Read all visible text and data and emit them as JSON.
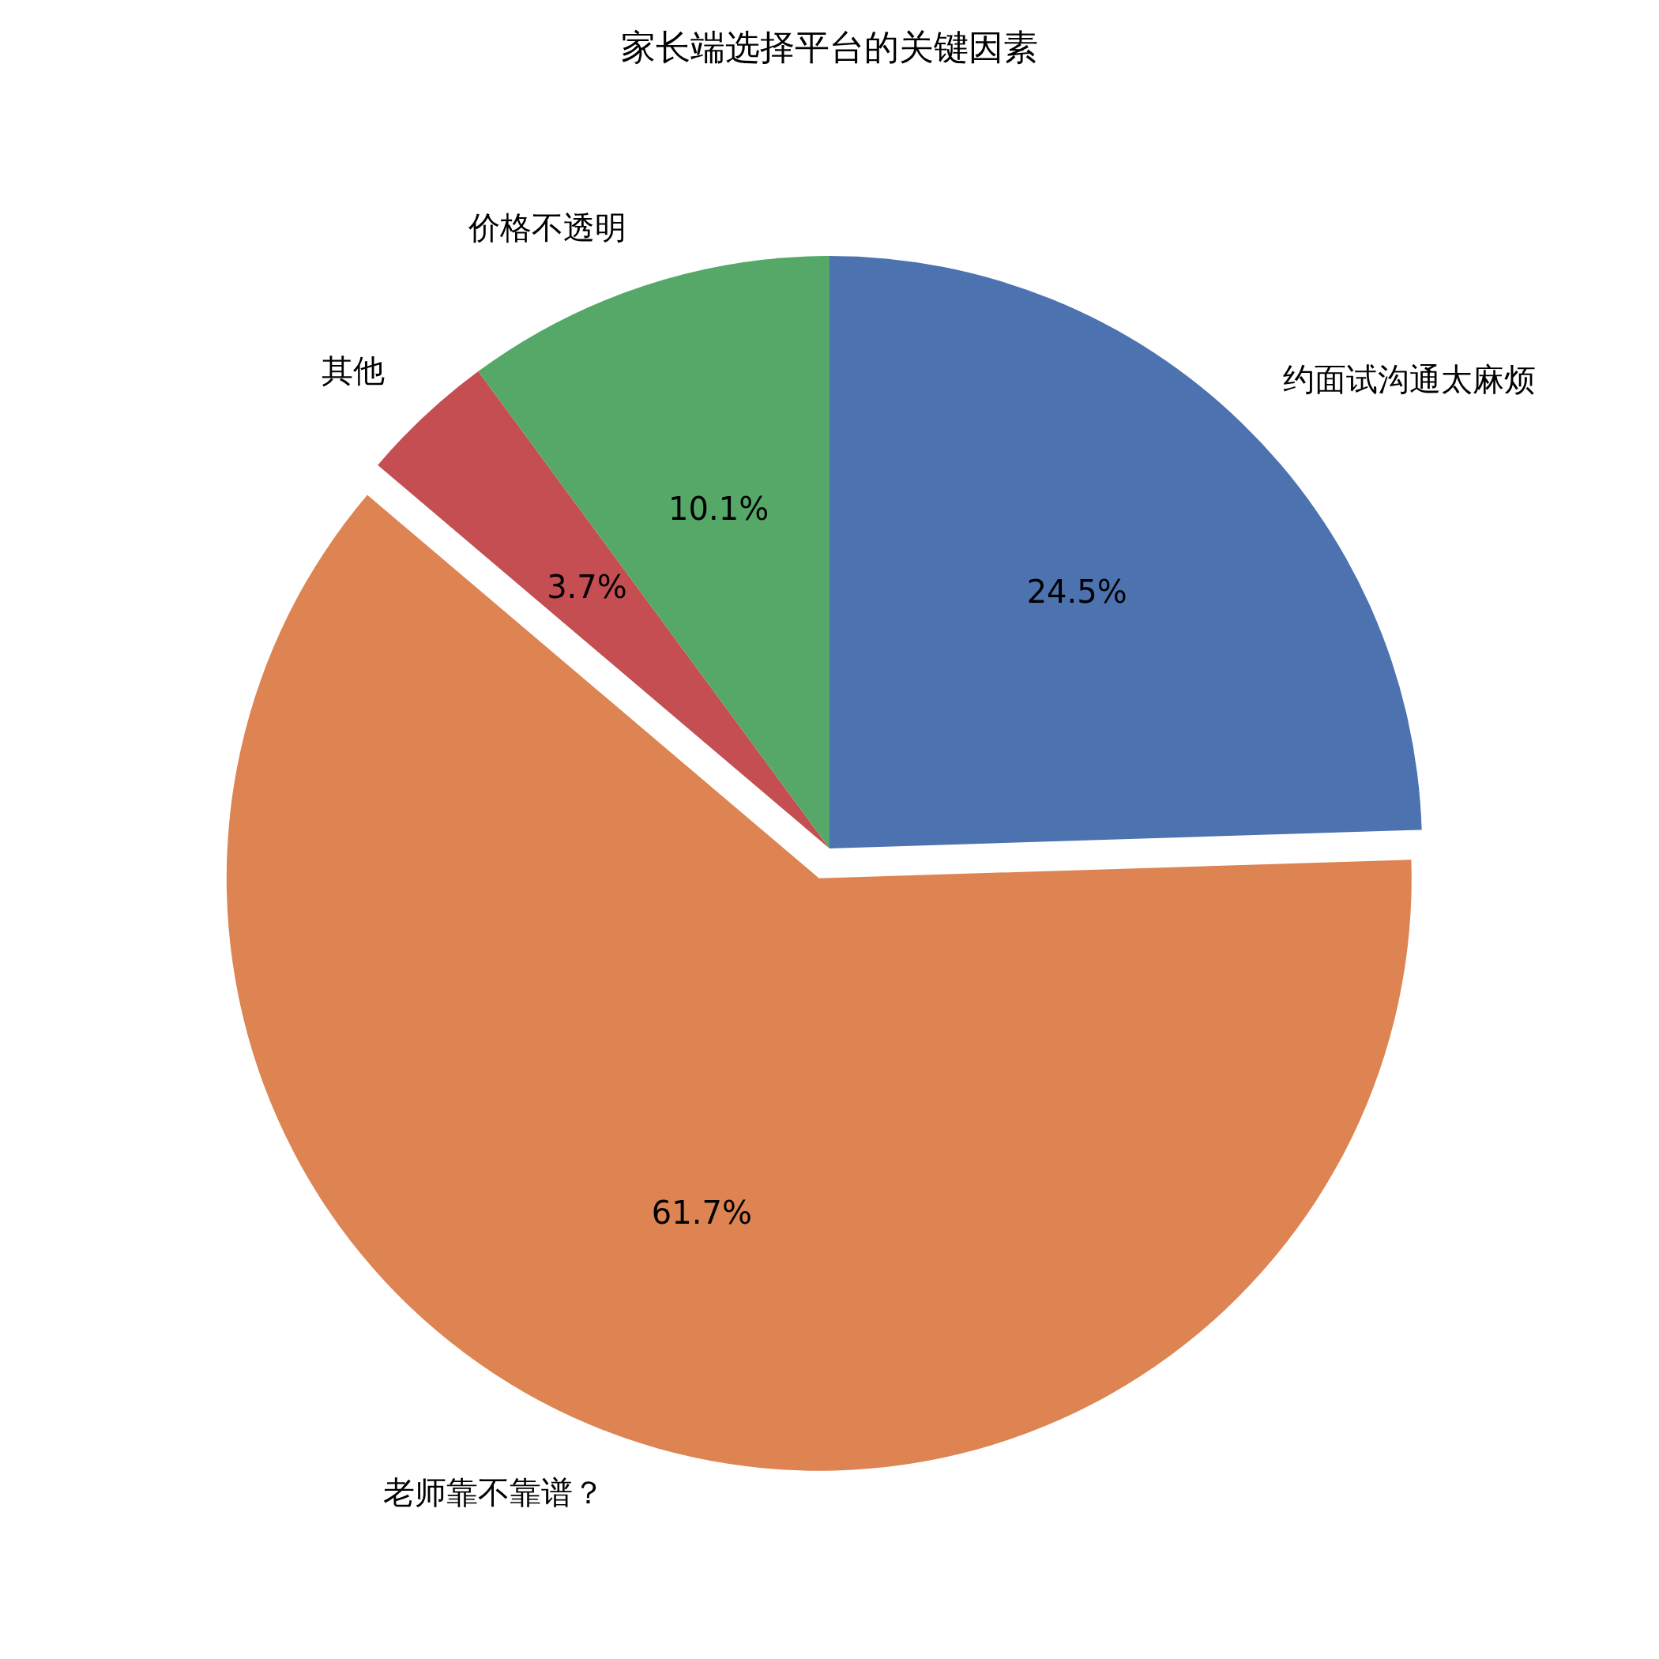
{
  "chart_data": {
    "type": "pie",
    "title": "家长端选择平台的关键因素",
    "categories": [
      "约面试沟通太麻烦",
      "老师靠不靠谱？",
      "其他",
      "价格不透明"
    ],
    "values": [
      24.5,
      61.7,
      3.7,
      10.1
    ],
    "value_labels": [
      "24.5%",
      "61.7%",
      "3.7%",
      "10.1%"
    ],
    "colors": [
      "#4c72b0",
      "#dd8452",
      "#c44e52",
      "#55a868"
    ]
  }
}
